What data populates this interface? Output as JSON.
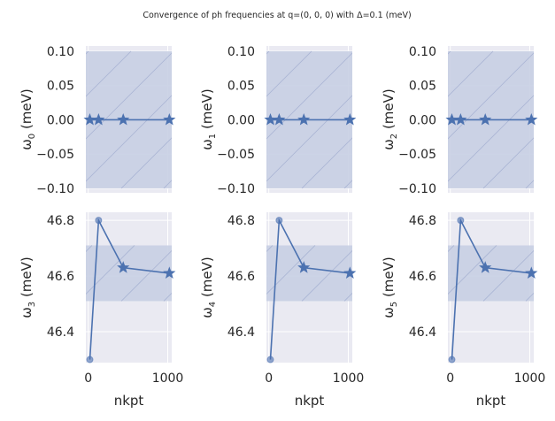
{
  "chart_data": [
    {
      "type": "line",
      "ylabel": "ω0 (meV)",
      "sub": "0",
      "x": [
        20,
        130,
        440,
        1020
      ],
      "y": [
        0,
        0,
        0,
        0
      ],
      "markers": [
        "star",
        "star",
        "star",
        "star"
      ],
      "band": [
        -0.1,
        0.1
      ],
      "ylim": [
        -0.1065,
        0.1077
      ],
      "yticks": [
        "0.10",
        "0.05",
        "0.00",
        "−0.05",
        "−0.10"
      ],
      "ytickvals": [
        0.1,
        0.05,
        0,
        -0.05,
        -0.1
      ]
    },
    {
      "type": "line",
      "ylabel": "ω1 (meV)",
      "sub": "1",
      "x": [
        20,
        130,
        440,
        1020
      ],
      "y": [
        0,
        0,
        0,
        0
      ],
      "markers": [
        "star",
        "star",
        "star",
        "star"
      ],
      "band": [
        -0.1,
        0.1
      ],
      "ylim": [
        -0.1065,
        0.1077
      ],
      "yticks": [
        "0.10",
        "0.05",
        "0.00",
        "−0.05",
        "−0.10"
      ],
      "ytickvals": [
        0.1,
        0.05,
        0,
        -0.05,
        -0.1
      ]
    },
    {
      "type": "line",
      "ylabel": "ω2 (meV)",
      "sub": "2",
      "x": [
        20,
        130,
        440,
        1020
      ],
      "y": [
        0,
        0,
        0,
        0
      ],
      "markers": [
        "star",
        "star",
        "star",
        "star"
      ],
      "band": [
        -0.1,
        0.1
      ],
      "ylim": [
        -0.1065,
        0.1077
      ],
      "yticks": [
        "0.10",
        "0.05",
        "0.00",
        "−0.05",
        "−0.10"
      ],
      "ytickvals": [
        0.1,
        0.05,
        0,
        -0.05,
        -0.1
      ]
    },
    {
      "type": "line",
      "ylabel": "ω3 (meV)",
      "sub": "3",
      "x": [
        20,
        130,
        440,
        1020
      ],
      "y": [
        46.3,
        46.8,
        46.63,
        46.61
      ],
      "markers": [
        "circle",
        "circle",
        "star",
        "star"
      ],
      "band": [
        46.51,
        46.71
      ],
      "ylim": [
        46.289,
        46.829
      ],
      "yticks": [
        "46.8",
        "46.6",
        "46.4"
      ],
      "ytickvals": [
        46.8,
        46.6,
        46.4
      ],
      "xlabel": "nkpt",
      "xticks": [
        "0",
        "1000"
      ],
      "xtickvals": [
        0,
        1000
      ]
    },
    {
      "type": "line",
      "ylabel": "ω4 (meV)",
      "sub": "4",
      "x": [
        20,
        130,
        440,
        1020
      ],
      "y": [
        46.3,
        46.8,
        46.63,
        46.61
      ],
      "markers": [
        "circle",
        "circle",
        "star",
        "star"
      ],
      "band": [
        46.51,
        46.71
      ],
      "ylim": [
        46.289,
        46.829
      ],
      "yticks": [
        "46.8",
        "46.6",
        "46.4"
      ],
      "ytickvals": [
        46.8,
        46.6,
        46.4
      ],
      "xlabel": "nkpt",
      "xticks": [
        "0",
        "1000"
      ],
      "xtickvals": [
        0,
        1000
      ]
    },
    {
      "type": "line",
      "ylabel": "ω5 (meV)",
      "sub": "5",
      "x": [
        20,
        130,
        440,
        1020
      ],
      "y": [
        46.3,
        46.8,
        46.63,
        46.61
      ],
      "markers": [
        "circle",
        "circle",
        "star",
        "star"
      ],
      "band": [
        46.51,
        46.71
      ],
      "ylim": [
        46.289,
        46.829
      ],
      "yticks": [
        "46.8",
        "46.6",
        "46.4"
      ],
      "ytickvals": [
        46.8,
        46.6,
        46.4
      ],
      "xlabel": "nkpt",
      "xticks": [
        "0",
        "1000"
      ],
      "xtickvals": [
        0,
        1000
      ]
    }
  ],
  "title": "Convergence of ph frequencies at q=(0, 0, 0) with Δ=0.1 (meV)",
  "xlim": [
    -30,
    1050
  ],
  "grid": true,
  "colors": {
    "line": "#4c72b0",
    "axes_bg": "#eaeaf2",
    "band": "#c8cfe3",
    "grid": "#ffffff"
  }
}
